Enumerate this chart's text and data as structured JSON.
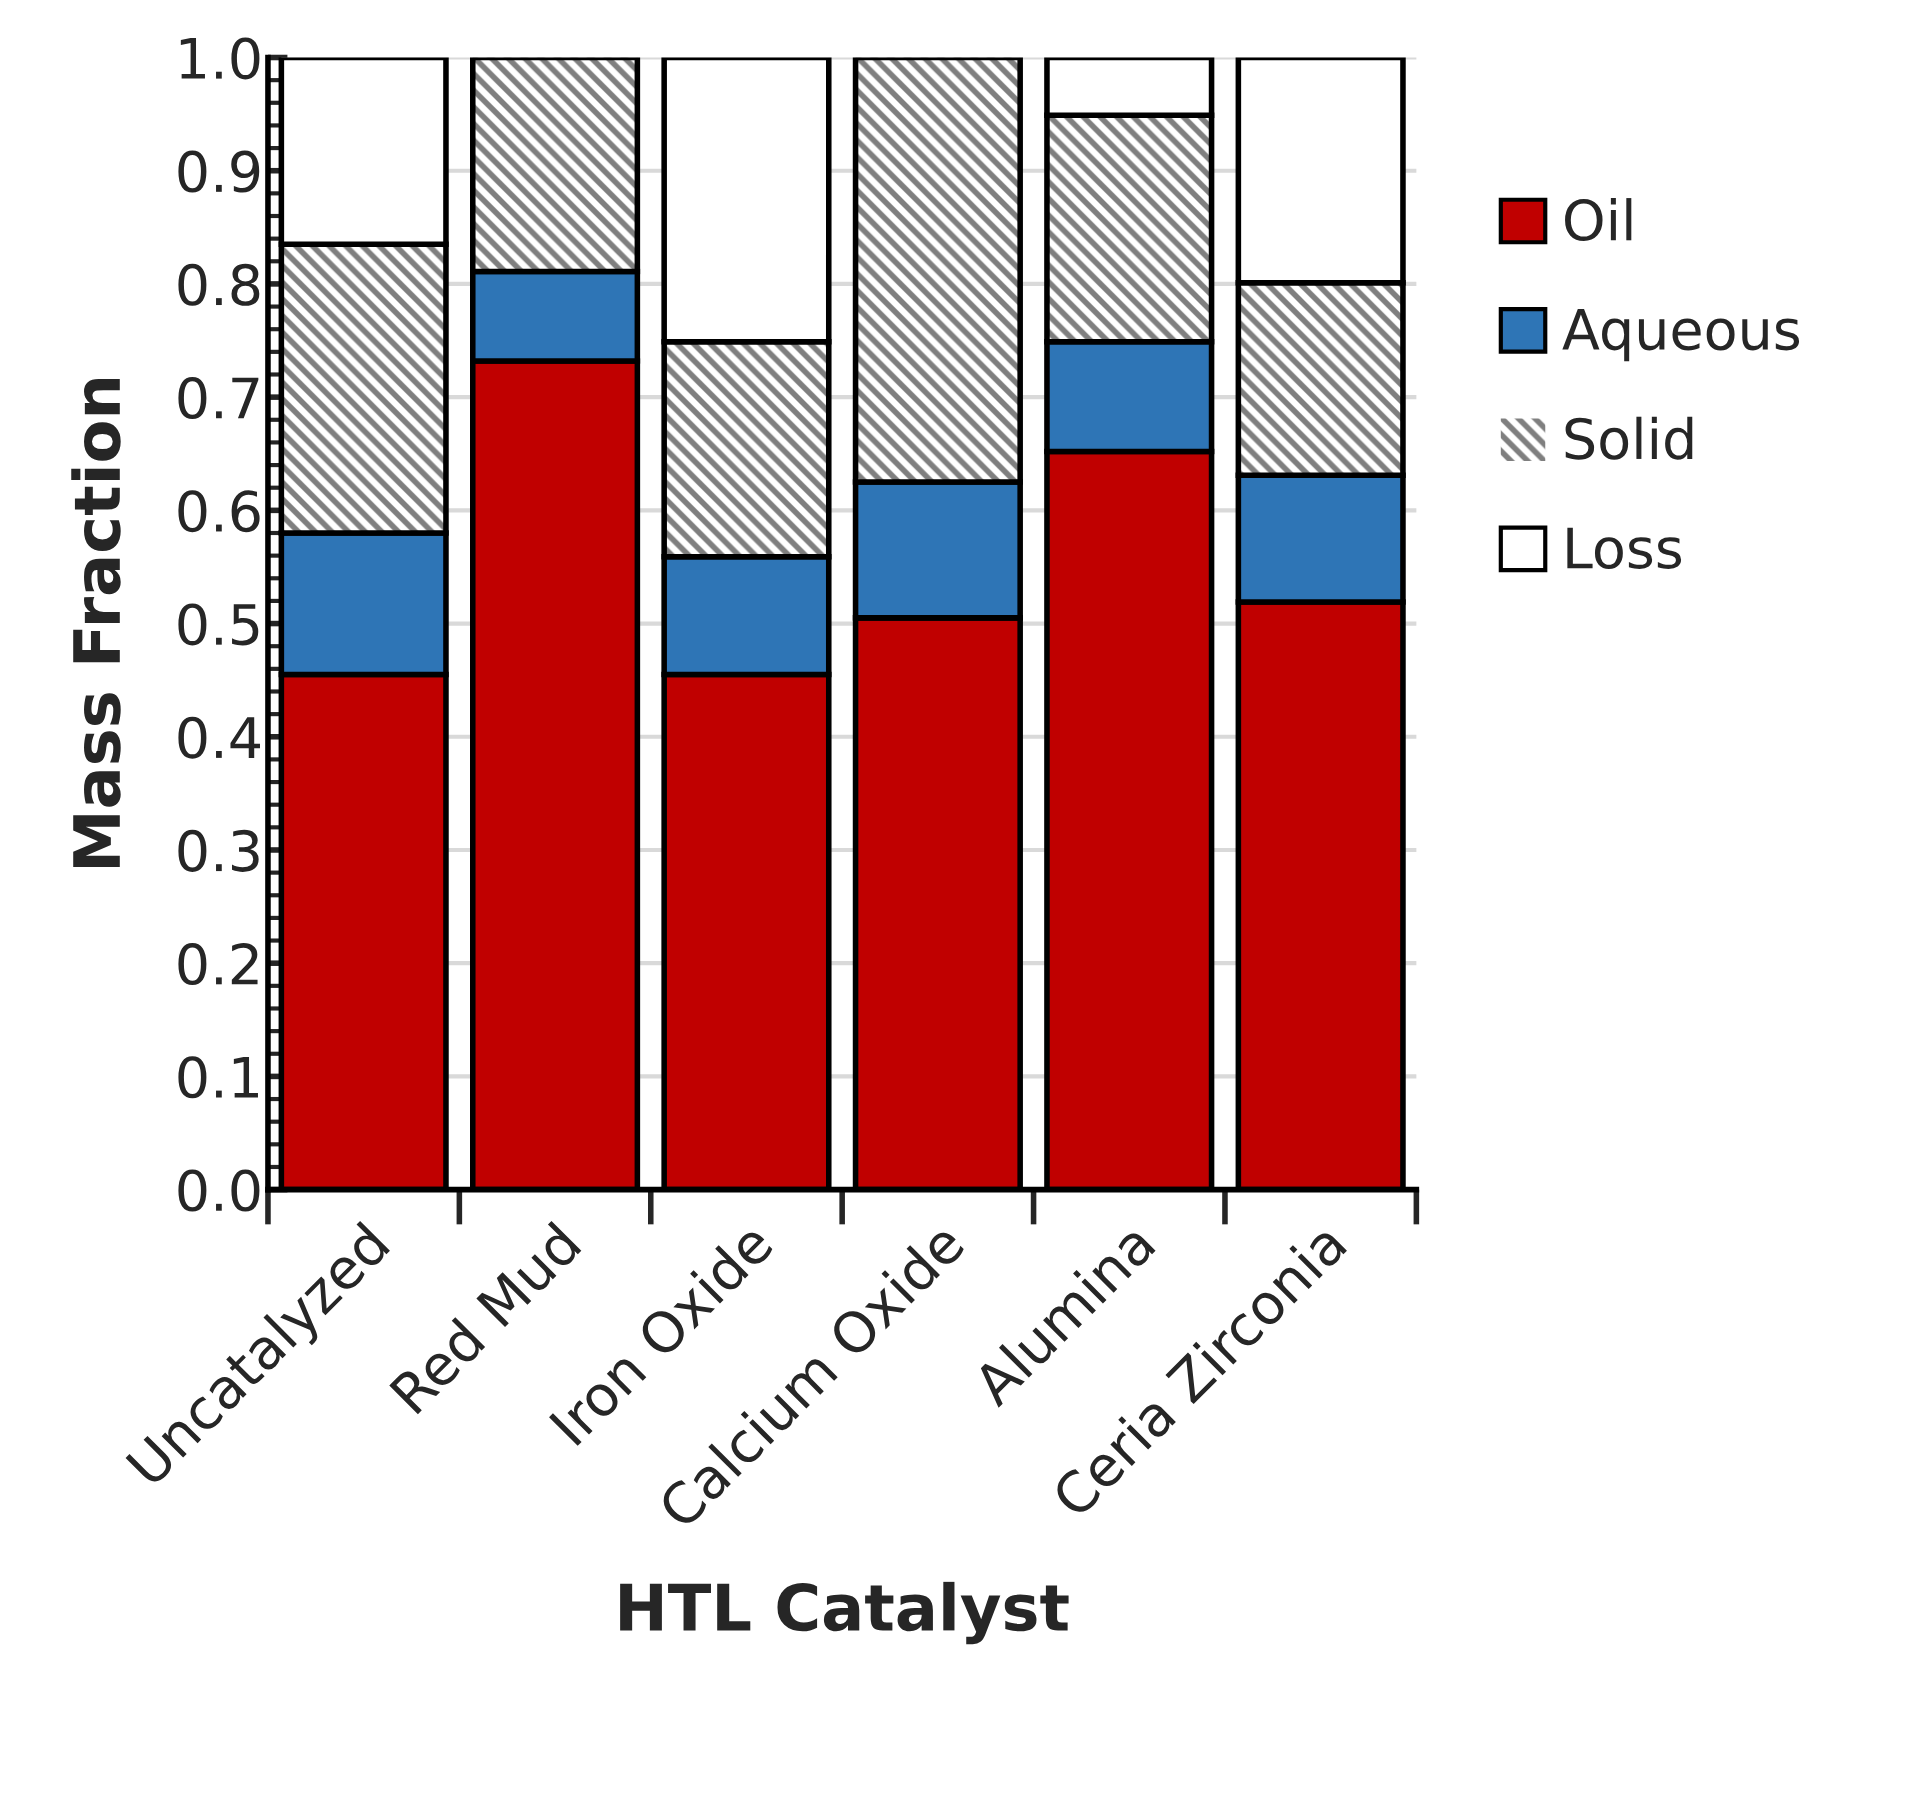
{
  "chart_data": {
    "type": "bar",
    "stacked": true,
    "xlabel": "HTL Catalyst",
    "ylabel": "Mass Fraction",
    "categories": [
      "Uncatalyzed",
      "Red Mud",
      "Iron Oxide",
      "Calcium Oxide",
      "Alumina",
      "Ceria Zirconia"
    ],
    "series": [
      {
        "name": "Oil",
        "color": "#c00000",
        "values": [
          0.455,
          0.732,
          0.455,
          0.505,
          0.652,
          0.519
        ]
      },
      {
        "name": "Aqueous",
        "color": "#2e75b6",
        "values": [
          0.125,
          0.079,
          0.104,
          0.12,
          0.097,
          0.112
        ]
      },
      {
        "name": "Solid",
        "color": "#7f7f7f",
        "values": [
          0.255,
          0.189,
          0.19,
          0.375,
          0.2,
          0.17
        ]
      },
      {
        "name": "Loss",
        "color": "#ffffff",
        "values": [
          0.165,
          0,
          0.251,
          0,
          0.051,
          0.199
        ]
      }
    ],
    "ylim": [
      0,
      1.0
    ],
    "yticks": [
      {
        "value": 0,
        "label": "0.0"
      },
      0.1,
      0.2,
      0.3,
      0.4,
      0.5,
      0.6,
      0.7,
      0.8,
      0.9,
      {
        "value": 1.0,
        "label": "1.0"
      }
    ],
    "grid": "y",
    "legend": "right"
  }
}
